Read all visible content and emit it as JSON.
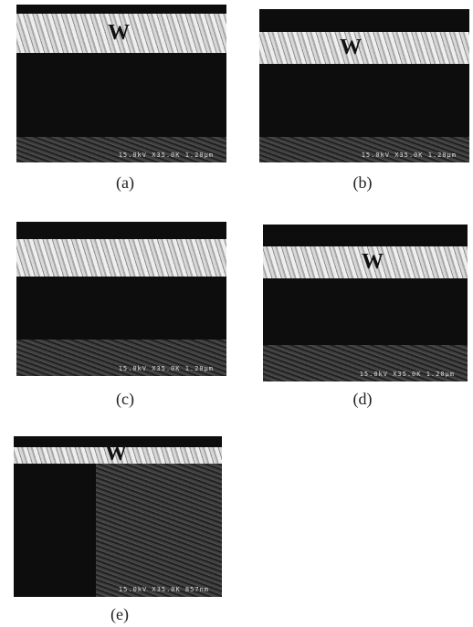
{
  "panels": [
    {
      "label": "(a)",
      "material": "W",
      "scale_text": "15.0kV X35.0K 1.20μm"
    },
    {
      "label": "(b)",
      "material": "W",
      "scale_text": "15.0kV X35.0K 1.20μm"
    },
    {
      "label": "(c)",
      "scale_text": "15.0kV X35.0K 1.20μm"
    },
    {
      "label": "(d)",
      "material": "W",
      "scale_text": "15.0kV X35.0K 1.20μm"
    },
    {
      "label": "(e)",
      "material": "W",
      "scale_text": "15.0kV X35.0K 857nm"
    }
  ]
}
